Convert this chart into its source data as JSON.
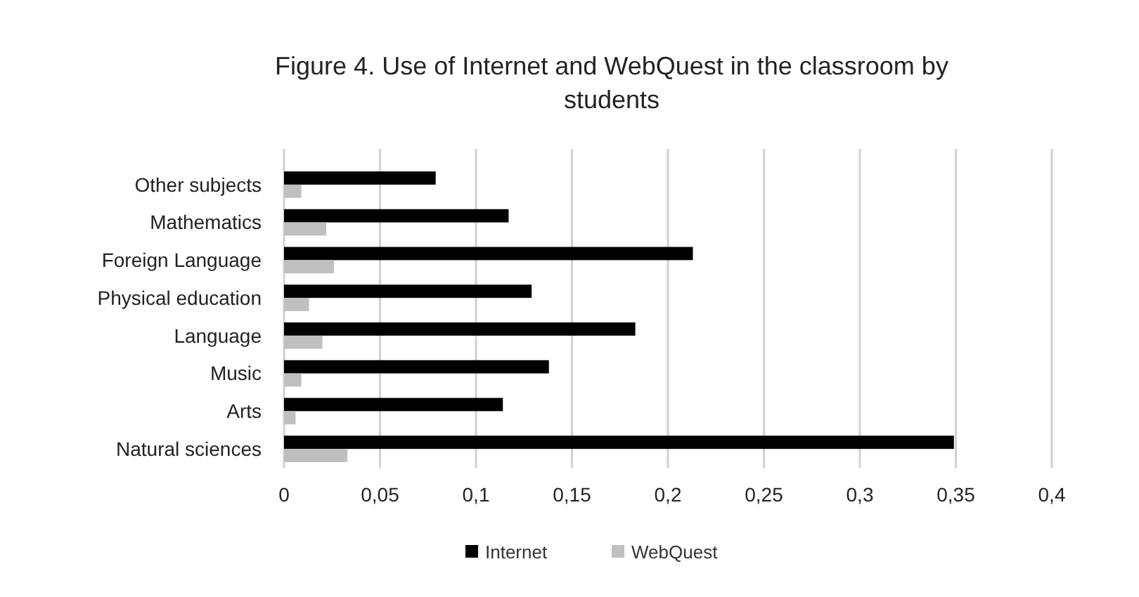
{
  "chart_data": {
    "type": "bar",
    "orientation": "horizontal",
    "title": "Figure 4. Use of Internet and WebQuest  in the classroom by students",
    "categories": [
      "Other subjects",
      "Mathematics",
      "Foreign Language",
      "Physical education",
      "Language",
      "Music",
      "Arts",
      "Natural sciences"
    ],
    "series": [
      {
        "name": "Internet",
        "color": "#000000",
        "values": [
          0.079,
          0.117,
          0.213,
          0.129,
          0.183,
          0.138,
          0.114,
          0.349
        ]
      },
      {
        "name": "WebQuest",
        "color": "#bfbfbf",
        "values": [
          0.009,
          0.022,
          0.026,
          0.013,
          0.02,
          0.009,
          0.006,
          0.033
        ]
      }
    ],
    "xlim": [
      0,
      0.4
    ],
    "xticks": [
      0,
      {
        "value": 0.05,
        "label": "0,05"
      },
      {
        "value": 0.1,
        "label": "0,1"
      },
      {
        "value": 0.15,
        "label": "0,15"
      },
      {
        "value": 0.2,
        "label": "0,2"
      },
      {
        "value": 0.25,
        "label": "0,25"
      },
      {
        "value": 0.3,
        "label": "0,3"
      },
      {
        "value": 0.35,
        "label": "0,35"
      },
      {
        "value": 0.4,
        "label": "0,4"
      }
    ],
    "grid": "x",
    "legend": "bottom"
  }
}
